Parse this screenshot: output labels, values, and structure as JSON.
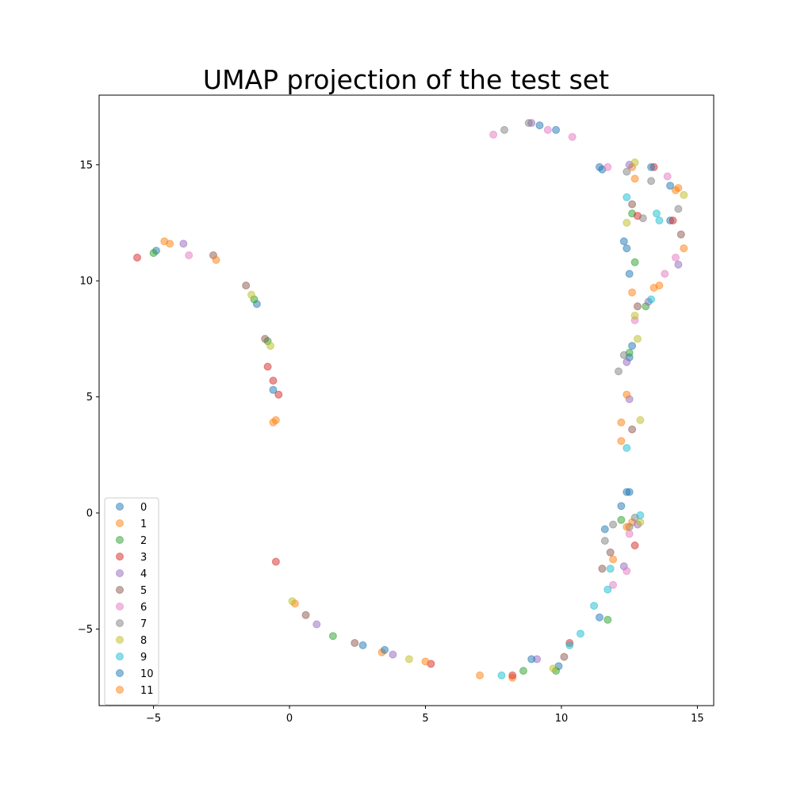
{
  "chart_data": {
    "type": "scatter",
    "title": "UMAP projection of the test set",
    "xlabel": "",
    "ylabel": "",
    "xlim": [
      -7,
      15.6
    ],
    "ylim": [
      -8.3,
      18.0
    ],
    "xticks": [
      -5,
      0,
      5,
      10,
      15
    ],
    "xtick_labels": [
      "−5",
      "0",
      "5",
      "10",
      "15"
    ],
    "yticks": [
      -5,
      0,
      5,
      10,
      15
    ],
    "ytick_labels": [
      "−5",
      "0",
      "5",
      "10",
      "15"
    ],
    "grid": false,
    "legend_position": "lower-left",
    "series": [
      {
        "name": "0",
        "color": "#1f77b4",
        "points": [
          [
            -4.9,
            11.3
          ],
          [
            -1.2,
            9.0
          ],
          [
            9.2,
            16.7
          ],
          [
            11.5,
            14.8
          ],
          [
            12.3,
            11.7
          ],
          [
            12.5,
            6.7
          ],
          [
            12.4,
            0.9
          ],
          [
            11.6,
            -0.7
          ],
          [
            9.9,
            -6.6
          ],
          [
            2.7,
            -5.7
          ],
          [
            14.0,
            12.6
          ],
          [
            12.6,
            7.2
          ]
        ]
      },
      {
        "name": "1",
        "color": "#ff7f0e",
        "points": [
          [
            -4.4,
            11.6
          ],
          [
            -0.6,
            3.9
          ],
          [
            12.6,
            14.9
          ],
          [
            12.6,
            9.5
          ],
          [
            12.2,
            3.9
          ],
          [
            12.6,
            -0.4
          ],
          [
            11.9,
            -2.0
          ],
          [
            8.2,
            -7.1
          ],
          [
            3.4,
            -6.0
          ],
          [
            0.2,
            -3.9
          ],
          [
            14.2,
            13.9
          ],
          [
            13.4,
            9.7
          ]
        ]
      },
      {
        "name": "2",
        "color": "#2ca02c",
        "points": [
          [
            -5.0,
            11.2
          ],
          [
            -1.3,
            9.2
          ],
          [
            -0.8,
            7.4
          ],
          [
            12.7,
            10.8
          ],
          [
            12.5,
            6.9
          ],
          [
            12.2,
            -0.3
          ],
          [
            11.7,
            -4.6
          ],
          [
            9.8,
            -6.8
          ],
          [
            1.6,
            -5.3
          ],
          [
            13.1,
            8.9
          ],
          [
            12.6,
            12.9
          ],
          [
            8.6,
            -6.8
          ]
        ]
      },
      {
        "name": "3",
        "color": "#d62728",
        "points": [
          [
            -5.6,
            11.0
          ],
          [
            -0.8,
            6.3
          ],
          [
            -0.6,
            5.7
          ],
          [
            -0.4,
            5.1
          ],
          [
            13.4,
            14.9
          ],
          [
            12.8,
            12.8
          ],
          [
            12.7,
            -1.4
          ],
          [
            10.3,
            -5.6
          ],
          [
            5.2,
            -6.5
          ],
          [
            -0.5,
            -2.1
          ],
          [
            14.1,
            12.6
          ],
          [
            8.2,
            -7.0
          ]
        ]
      },
      {
        "name": "4",
        "color": "#9467bd",
        "points": [
          [
            -3.9,
            11.6
          ],
          [
            12.5,
            4.9
          ],
          [
            12.3,
            -2.3
          ],
          [
            12.8,
            -0.5
          ],
          [
            9.1,
            -6.3
          ],
          [
            3.8,
            -6.1
          ],
          [
            1.0,
            -4.8
          ],
          [
            13.2,
            9.1
          ],
          [
            14.3,
            10.7
          ],
          [
            12.5,
            15.0
          ],
          [
            12.4,
            6.5
          ],
          [
            8.9,
            16.8
          ]
        ]
      },
      {
        "name": "5",
        "color": "#8c564b",
        "points": [
          [
            -2.8,
            11.1
          ],
          [
            -1.6,
            9.8
          ],
          [
            -0.9,
            7.5
          ],
          [
            12.6,
            13.3
          ],
          [
            12.8,
            8.9
          ],
          [
            12.6,
            3.6
          ],
          [
            11.8,
            -1.7
          ],
          [
            10.1,
            -6.2
          ],
          [
            2.4,
            -5.6
          ],
          [
            0.6,
            -4.4
          ],
          [
            14.4,
            12.0
          ],
          [
            11.5,
            -2.4
          ]
        ]
      },
      {
        "name": "6",
        "color": "#e377c2",
        "points": [
          [
            -3.7,
            11.1
          ],
          [
            7.5,
            16.3
          ],
          [
            9.5,
            16.5
          ],
          [
            11.7,
            14.9
          ],
          [
            13.9,
            14.5
          ],
          [
            14.2,
            11.0
          ],
          [
            12.7,
            8.3
          ],
          [
            12.5,
            -0.9
          ],
          [
            11.9,
            -3.1
          ],
          [
            13.8,
            10.3
          ],
          [
            10.4,
            16.2
          ],
          [
            12.4,
            -2.5
          ]
        ]
      },
      {
        "name": "7",
        "color": "#7f7f7f",
        "points": [
          [
            7.9,
            16.5
          ],
          [
            12.4,
            14.7
          ],
          [
            12.1,
            6.1
          ],
          [
            12.7,
            -0.2
          ],
          [
            11.6,
            -1.2
          ],
          [
            13.3,
            14.3
          ],
          [
            14.3,
            13.1
          ],
          [
            12.5,
            -0.6
          ],
          [
            11.9,
            -0.5
          ],
          [
            8.8,
            16.8
          ],
          [
            13.0,
            12.7
          ],
          [
            12.3,
            6.8
          ]
        ]
      },
      {
        "name": "8",
        "color": "#bcbd22",
        "points": [
          [
            -1.4,
            9.4
          ],
          [
            -0.7,
            7.2
          ],
          [
            12.7,
            15.1
          ],
          [
            12.4,
            12.5
          ],
          [
            12.8,
            7.5
          ],
          [
            12.9,
            -0.4
          ],
          [
            12.9,
            4.0
          ],
          [
            9.7,
            -6.7
          ],
          [
            4.4,
            -6.3
          ],
          [
            0.1,
            -3.8
          ],
          [
            14.5,
            13.7
          ],
          [
            12.7,
            8.5
          ]
        ]
      },
      {
        "name": "9",
        "color": "#17becf",
        "points": [
          [
            12.4,
            13.6
          ],
          [
            13.5,
            12.9
          ],
          [
            13.3,
            9.2
          ],
          [
            12.4,
            2.8
          ],
          [
            11.8,
            -2.4
          ],
          [
            11.2,
            -4.0
          ],
          [
            10.7,
            -5.2
          ],
          [
            7.8,
            -7.0
          ],
          [
            13.6,
            12.6
          ],
          [
            11.7,
            -3.3
          ],
          [
            12.9,
            -0.1
          ],
          [
            10.3,
            -5.7
          ]
        ]
      },
      {
        "name": "10",
        "color": "#1f77b4",
        "points": [
          [
            9.8,
            16.5
          ],
          [
            11.4,
            14.9
          ],
          [
            12.4,
            11.4
          ],
          [
            12.5,
            10.3
          ],
          [
            12.5,
            0.9
          ],
          [
            12.2,
            0.3
          ],
          [
            11.4,
            -4.5
          ],
          [
            8.9,
            -6.3
          ],
          [
            3.5,
            -5.9
          ],
          [
            -0.6,
            5.3
          ],
          [
            13.3,
            14.9
          ],
          [
            14.0,
            14.1
          ]
        ]
      },
      {
        "name": "11",
        "color": "#ff7f0e",
        "points": [
          [
            -4.6,
            11.7
          ],
          [
            -2.7,
            10.9
          ],
          [
            -0.5,
            4.0
          ],
          [
            12.7,
            14.4
          ],
          [
            13.6,
            9.8
          ],
          [
            12.4,
            5.1
          ],
          [
            12.2,
            3.1
          ],
          [
            12.4,
            -0.6
          ],
          [
            7.0,
            -7.0
          ],
          [
            5.0,
            -6.4
          ],
          [
            14.5,
            11.4
          ],
          [
            14.3,
            14.0
          ]
        ]
      }
    ]
  }
}
